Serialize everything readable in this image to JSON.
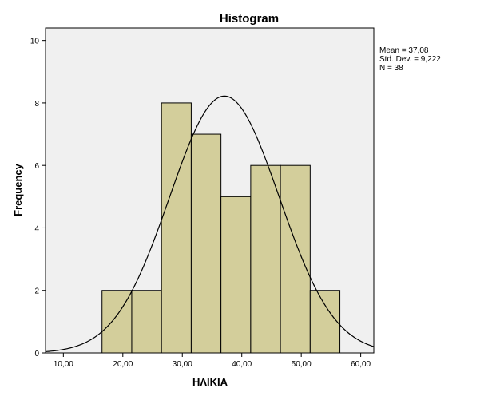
{
  "chart_data": {
    "type": "bar",
    "title": "Histogram",
    "xlabel": "ΗΛΙΚΙΑ",
    "ylabel": "Frequency",
    "xlim": [
      7,
      62.2
    ],
    "ylim": [
      0,
      10.4
    ],
    "bin_edges": [
      16.5,
      21.5,
      26.5,
      31.5,
      36.5,
      41.5,
      46.5,
      51.5,
      56.5
    ],
    "values": [
      2,
      2,
      8,
      7,
      5,
      6,
      6,
      2
    ],
    "x_ticks": [
      10,
      20,
      30,
      40,
      50,
      60
    ],
    "x_tick_labels": [
      "10,00",
      "20,00",
      "30,00",
      "40,00",
      "50,00",
      "60,00"
    ],
    "y_ticks": [
      0,
      2,
      4,
      6,
      8,
      10
    ],
    "y_tick_labels": [
      "0",
      "2",
      "4",
      "6",
      "8",
      "10"
    ],
    "normal_curve": {
      "mean": 37.08,
      "std": 9.222,
      "n": 38,
      "bin_width": 5
    },
    "stats": [
      "Mean = 37,08",
      "Std. Dev. = 9,222",
      "N = 38"
    ],
    "grid": false,
    "legend_position": "top-right",
    "colors": {
      "plot_background": "#f0f0f0",
      "bar_fill": "#d3ce9b",
      "bar_stroke": "#000000",
      "curve": "#000000"
    }
  }
}
